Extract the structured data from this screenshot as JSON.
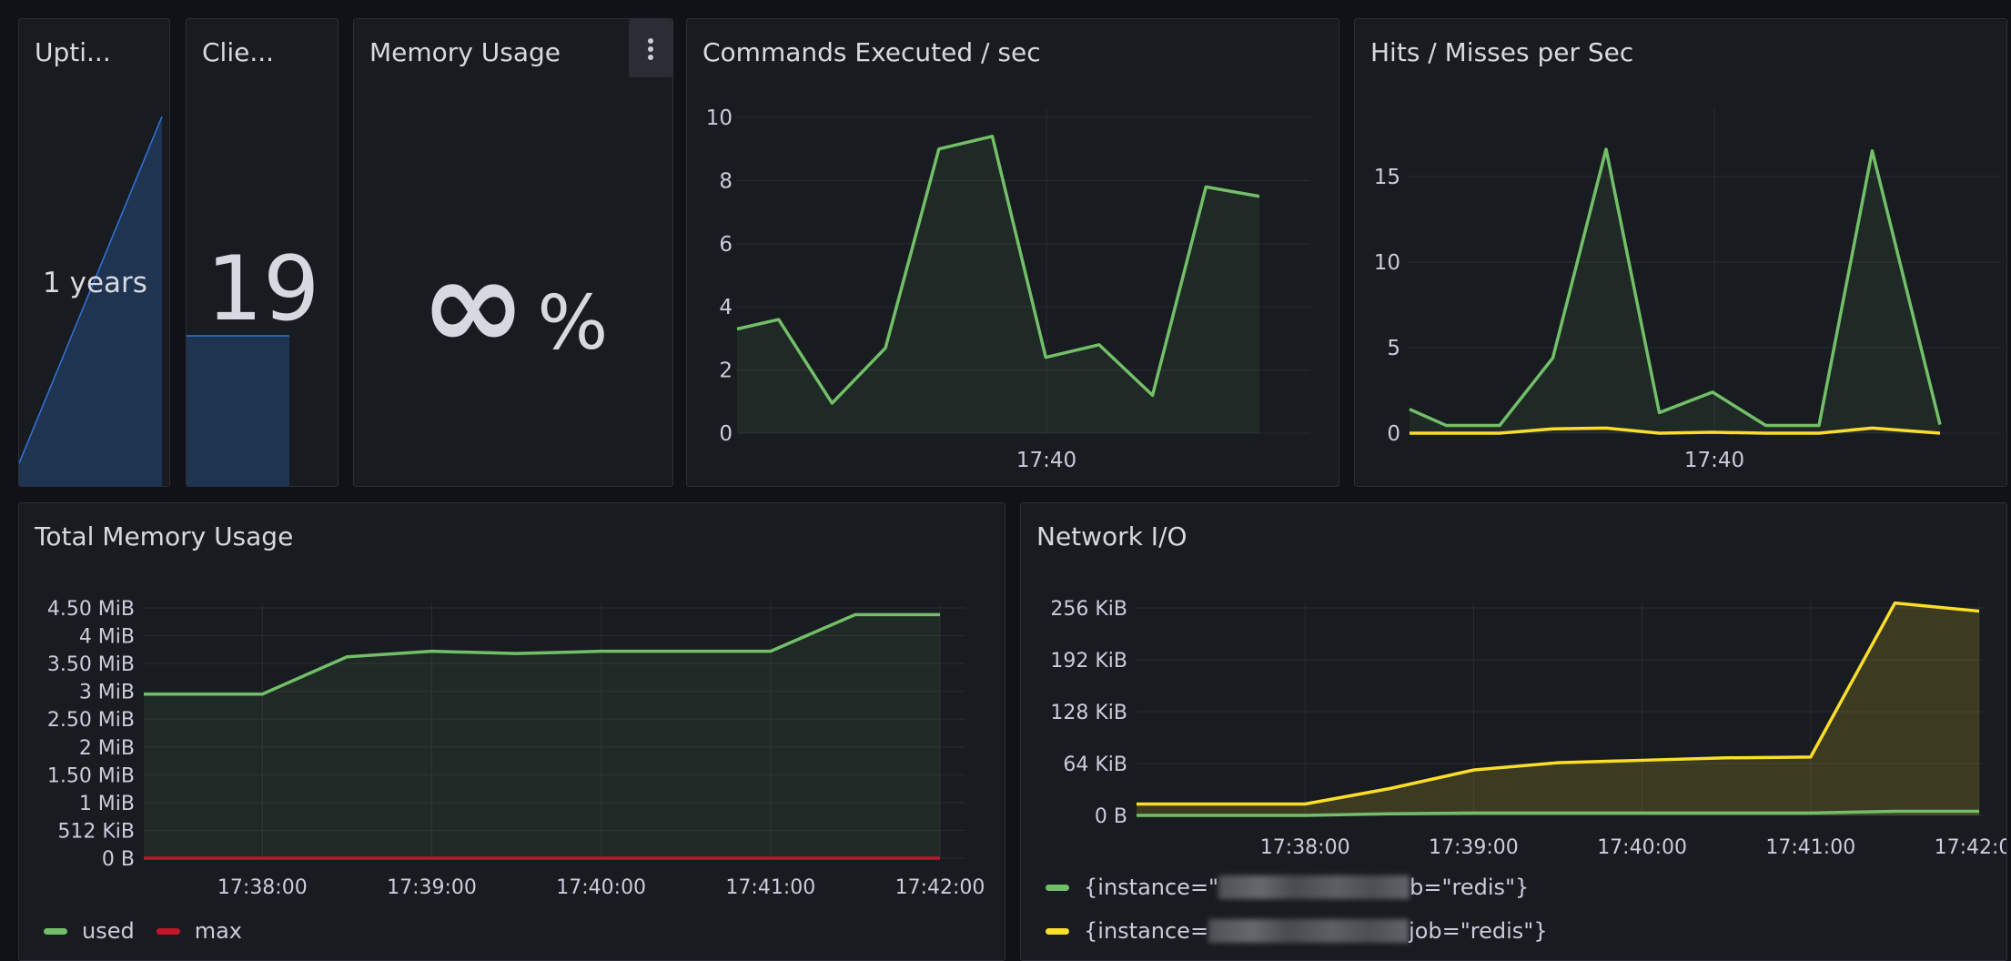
{
  "panels": {
    "uptime": {
      "title": "Upti...",
      "value": "1 years"
    },
    "clients": {
      "title": "Clie...",
      "value": "19"
    },
    "memory_usage": {
      "title": "Memory Usage",
      "value": "∞",
      "unit": "%"
    },
    "commands": {
      "title": "Commands Executed / sec"
    },
    "hits_misses": {
      "title": "Hits / Misses per Sec"
    },
    "total_memory": {
      "title": "Total Memory Usage",
      "legend": [
        {
          "label": "used",
          "color": "#73bf69"
        },
        {
          "label": "max",
          "color": "#c4162a"
        }
      ]
    },
    "network_io": {
      "title": "Network I/O",
      "legend": [
        {
          "pre": "{instance=\"",
          "post": "b=\"redis\"}",
          "color": "#73bf69"
        },
        {
          "pre": "{instance=",
          "post": "job=\"redis\"}",
          "color": "#fade2a"
        }
      ]
    }
  },
  "colors": {
    "green": "#73bf69",
    "yellow": "#fade2a",
    "red": "#c4162a",
    "blue": "#3274d9"
  },
  "chart_data": [
    {
      "id": "commands",
      "type": "area",
      "title": "Commands Executed / sec",
      "ylim": [
        0,
        10
      ],
      "yticks": [
        "0",
        "2",
        "4",
        "6",
        "8",
        "10"
      ],
      "xticks": [
        "17:40"
      ],
      "series": [
        {
          "values": [
            3.3,
            3.6,
            0.95,
            2.7,
            9.0,
            9.4,
            2.4,
            2.8,
            1.2,
            7.8,
            7.5
          ]
        }
      ]
    },
    {
      "id": "hits_misses",
      "type": "area",
      "title": "Hits / Misses per Sec",
      "ylim": [
        0,
        18
      ],
      "yticks": [
        "0",
        "5",
        "10",
        "15"
      ],
      "xticks": [
        "17:40"
      ],
      "series": [
        {
          "values": [
            1.4,
            0.45,
            0.45,
            4.4,
            16.6,
            1.2,
            2.4,
            0.45,
            0.45,
            16.5,
            0.5
          ]
        },
        {
          "values": [
            0,
            0,
            0,
            0.25,
            0.3,
            0,
            0.05,
            0,
            0,
            0.3,
            0
          ]
        }
      ]
    },
    {
      "id": "total_memory",
      "type": "area",
      "title": "Total Memory Usage",
      "ylim": [
        0,
        4.5
      ],
      "yticks": [
        "0 B",
        "512 KiB",
        "1 MiB",
        "1.50 MiB",
        "2 MiB",
        "2.50 MiB",
        "3 MiB",
        "3.50 MiB",
        "4 MiB",
        "4.50 MiB"
      ],
      "xticks": [
        "17:38:00",
        "17:39:00",
        "17:40:00",
        "17:41:00",
        "17:42:00"
      ],
      "series": [
        {
          "name": "used",
          "x": [
            "17:37:18",
            "17:38:00",
            "17:38:30",
            "17:39:00",
            "17:39:30",
            "17:40:00",
            "17:40:30",
            "17:41:00",
            "17:41:30",
            "17:42:00"
          ],
          "values": [
            2.95,
            2.95,
            3.62,
            3.72,
            3.68,
            3.72,
            3.72,
            3.72,
            4.38,
            4.38
          ]
        },
        {
          "name": "max",
          "values": [
            0,
            0,
            0,
            0,
            0,
            0,
            0,
            0,
            0,
            0
          ]
        }
      ]
    },
    {
      "id": "network_io",
      "type": "area",
      "title": "Network I/O",
      "ylim": [
        0,
        256
      ],
      "yticks": [
        "0 B",
        "64 KiB",
        "128 KiB",
        "192 KiB",
        "256 KiB"
      ],
      "xticks": [
        "17:38:00",
        "17:39:00",
        "17:40:00",
        "17:41:00",
        "17:42:00"
      ],
      "series": [
        {
          "x": [
            "17:37:00",
            "17:38:00",
            "17:38:30",
            "17:39:00",
            "17:39:30",
            "17:40:00",
            "17:40:30",
            "17:41:00",
            "17:41:30",
            "17:42:00"
          ],
          "values": [
            0,
            0,
            2,
            3,
            3,
            3,
            3,
            3,
            5,
            5
          ]
        },
        {
          "values": [
            14,
            14,
            33,
            56,
            65,
            68,
            71,
            72,
            262,
            252
          ]
        }
      ]
    }
  ]
}
